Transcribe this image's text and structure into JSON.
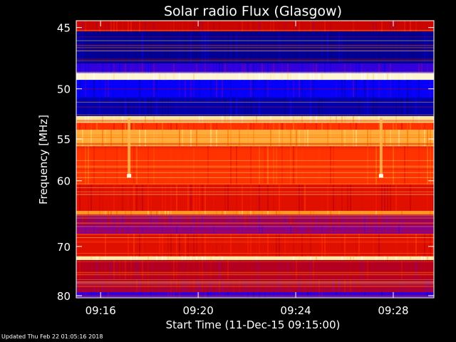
{
  "chart_data": {
    "type": "heatmap",
    "title": "Solar radio Flux (Glasgow)",
    "xlabel": "Start Time (11-Dec-15 09:15:00)",
    "ylabel": "Frequency [MHz]",
    "x_range": [
      "09:15:00",
      "09:29:40"
    ],
    "y_range_mhz": [
      44.5,
      80.5
    ],
    "y_scale": "reciprocal",
    "x_ticks": [
      "09:16",
      "09:20",
      "09:24",
      "09:28"
    ],
    "y_ticks": [
      45,
      50,
      55,
      60,
      70,
      80
    ],
    "colormap": [
      "#000080",
      "#0000ff",
      "#8000a0",
      "#c00000",
      "#ff2000",
      "#ff8000",
      "#ffe080",
      "#ffffff"
    ],
    "frequency_bands": [
      {
        "from_mhz": 44.5,
        "to_mhz": 45.3,
        "level": 0.45
      },
      {
        "from_mhz": 45.3,
        "to_mhz": 47.8,
        "level": 0.02
      },
      {
        "from_mhz": 47.8,
        "to_mhz": 48.6,
        "level": 0.2
      },
      {
        "from_mhz": 48.6,
        "to_mhz": 49.2,
        "level": 0.95
      },
      {
        "from_mhz": 49.2,
        "to_mhz": 50.8,
        "level": 0.15
      },
      {
        "from_mhz": 50.8,
        "to_mhz": 52.6,
        "level": 0.05
      },
      {
        "from_mhz": 52.6,
        "to_mhz": 53.3,
        "level": 0.88
      },
      {
        "from_mhz": 53.3,
        "to_mhz": 54.0,
        "level": 0.6
      },
      {
        "from_mhz": 54.0,
        "to_mhz": 55.8,
        "level": 0.78
      },
      {
        "from_mhz": 55.8,
        "to_mhz": 60.5,
        "level": 0.6
      },
      {
        "from_mhz": 60.5,
        "to_mhz": 64.2,
        "level": 0.5
      },
      {
        "from_mhz": 64.2,
        "to_mhz": 64.8,
        "level": 0.75
      },
      {
        "from_mhz": 64.8,
        "to_mhz": 66.5,
        "level": 0.35
      },
      {
        "from_mhz": 66.5,
        "to_mhz": 67.8,
        "level": 0.3
      },
      {
        "from_mhz": 67.8,
        "to_mhz": 71.8,
        "level": 0.5
      },
      {
        "from_mhz": 71.8,
        "to_mhz": 72.5,
        "level": 0.9
      },
      {
        "from_mhz": 72.5,
        "to_mhz": 76.5,
        "level": 0.4
      },
      {
        "from_mhz": 76.5,
        "to_mhz": 79.2,
        "level": 0.38
      },
      {
        "from_mhz": 79.2,
        "to_mhz": 80.5,
        "level": 0.2
      }
    ],
    "events": [
      {
        "time": "09:17:10",
        "from_mhz": 52.8,
        "to_mhz": 59.5,
        "level": 0.8
      },
      {
        "time": "09:27:30",
        "from_mhz": 52.8,
        "to_mhz": 59.5,
        "level": 0.8
      }
    ],
    "grid": false,
    "legend": "none"
  },
  "footer": {
    "updated_text": "Updated Thu Feb 22 01:05:16 2018"
  }
}
